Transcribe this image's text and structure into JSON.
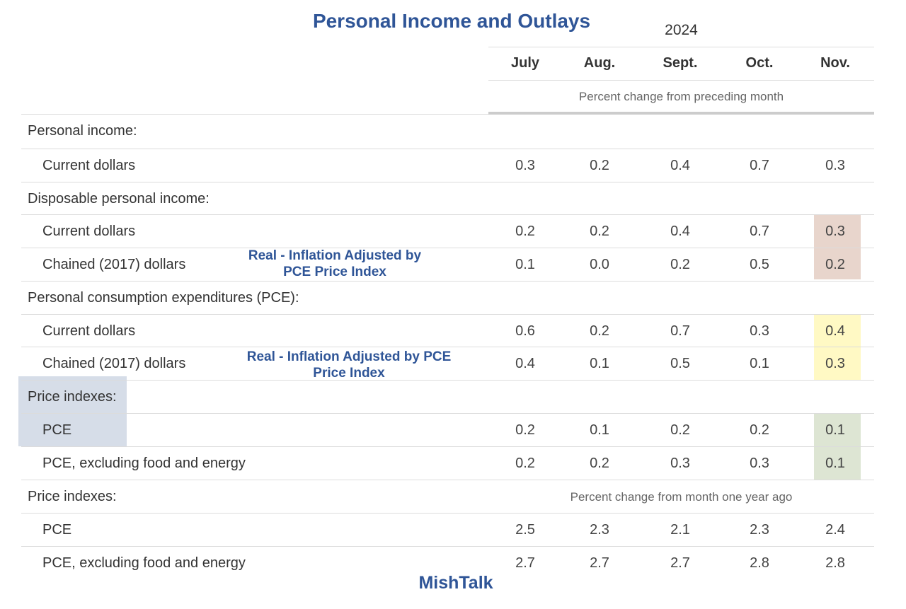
{
  "title": "Personal Income and Outlays",
  "year": "2024",
  "months": [
    "July",
    "Aug.",
    "Sept.",
    "Oct.",
    "Nov."
  ],
  "subheader_monthly": "Percent change from preceding month",
  "subheader_yearly": "Percent change from month one year ago",
  "rows": [
    {
      "label": "Personal income:",
      "indent": false,
      "values": []
    },
    {
      "label": "Current dollars",
      "indent": true,
      "values": [
        "0.3",
        "0.2",
        "0.4",
        "0.7",
        "0.3"
      ]
    },
    {
      "label": "Disposable personal income:",
      "indent": false,
      "values": []
    },
    {
      "label": "Current dollars",
      "indent": true,
      "values": [
        "0.2",
        "0.2",
        "0.4",
        "0.7",
        "0.3"
      ]
    },
    {
      "label": "Chained (2017) dollars",
      "indent": true,
      "values": [
        "0.1",
        "0.0",
        "0.2",
        "0.5",
        "0.2"
      ]
    },
    {
      "label": "Personal consumption expenditures (PCE):",
      "indent": false,
      "values": []
    },
    {
      "label": "Current dollars",
      "indent": true,
      "values": [
        "0.6",
        "0.2",
        "0.7",
        "0.3",
        "0.4"
      ]
    },
    {
      "label": "Chained (2017) dollars",
      "indent": true,
      "values": [
        "0.4",
        "0.1",
        "0.5",
        "0.1",
        "0.3"
      ]
    },
    {
      "label": "Price indexes:",
      "indent": false,
      "values": []
    },
    {
      "label": "PCE",
      "indent": true,
      "values": [
        "0.2",
        "0.1",
        "0.2",
        "0.2",
        "0.1"
      ]
    },
    {
      "label": "PCE, excluding food and energy",
      "indent": true,
      "values": [
        "0.2",
        "0.2",
        "0.3",
        "0.3",
        "0.1"
      ]
    },
    {
      "label": "Price indexes:",
      "indent": false,
      "values": []
    },
    {
      "label": "PCE",
      "indent": true,
      "values": [
        "2.5",
        "2.3",
        "2.1",
        "2.3",
        "2.4"
      ]
    },
    {
      "label": "PCE, excluding food and energy",
      "indent": true,
      "values": [
        "2.7",
        "2.7",
        "2.7",
        "2.8",
        "2.8"
      ]
    }
  ],
  "annotations": {
    "note1": {
      "line1": "Real - Inflation Adjusted by",
      "line2": "PCE Price Index"
    },
    "note2": {
      "line1": "Real - Inflation Adjusted by PCE",
      "line2": "Price Index"
    }
  },
  "highlight_colors": {
    "disposable_income": "#e8d5cc",
    "pce_spending": "#fff9c4",
    "price_index_nov": "#dde5d3",
    "price_label": "#d6dde8"
  },
  "footer": "MishTalk"
}
